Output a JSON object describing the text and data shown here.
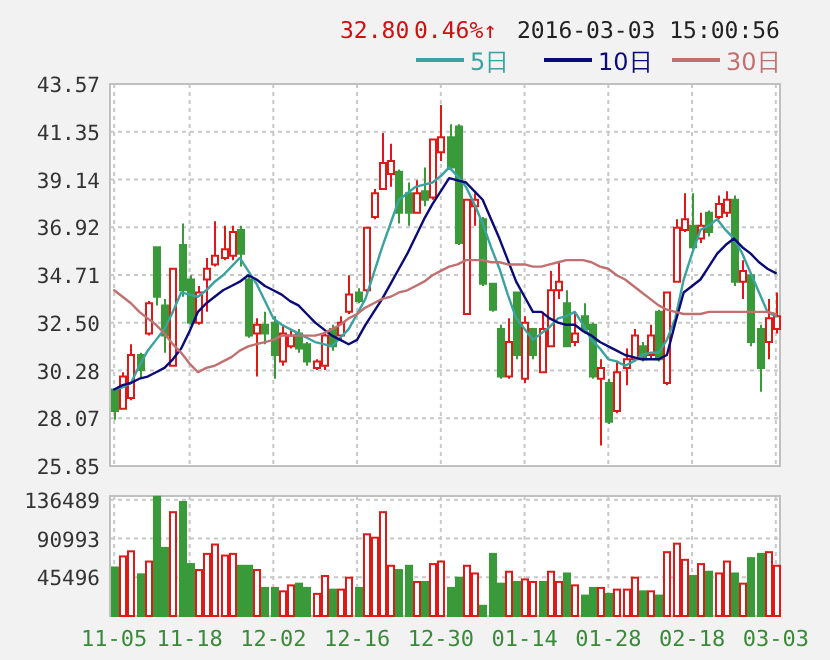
{
  "chart_data": [
    {
      "type": "candlestick",
      "categories": [
        null,
        null,
        null,
        null,
        null,
        null,
        null,
        null,
        null,
        null,
        null,
        null,
        null,
        null,
        null,
        null,
        null,
        null,
        null,
        null,
        null,
        null,
        null,
        null,
        null,
        null,
        null,
        null,
        null,
        null,
        null,
        null,
        null,
        null,
        null,
        null,
        null,
        null,
        null,
        null,
        null,
        null,
        null,
        null,
        null,
        null,
        null,
        null,
        null,
        null,
        null,
        null,
        null,
        null,
        null,
        null,
        null,
        null,
        null,
        null,
        null,
        null,
        null,
        null,
        null,
        null,
        null,
        null,
        null,
        null,
        null,
        null,
        null,
        null,
        null,
        null,
        null,
        null,
        null,
        null
      ],
      "ohlc": [
        [
          29.4,
          29.4,
          28.0,
          28.4
        ],
        [
          28.5,
          30.2,
          28.5,
          30.0
        ],
        [
          29.0,
          31.5,
          28.9,
          31.0
        ],
        [
          31.0,
          31.1,
          29.9,
          30.3
        ],
        [
          32.0,
          33.5,
          31.9,
          33.4
        ],
        [
          36.0,
          36.0,
          33.3,
          33.7
        ],
        [
          33.3,
          33.6,
          31.1,
          31.9
        ],
        [
          30.5,
          35.0,
          30.5,
          35.0
        ],
        [
          36.1,
          37.1,
          33.7,
          34.0
        ],
        [
          34.5,
          34.7,
          32.4,
          32.5
        ],
        [
          32.5,
          34.2,
          32.4,
          33.9
        ],
        [
          34.5,
          35.5,
          33.0,
          35.0
        ],
        [
          35.2,
          37.2,
          35.1,
          35.6
        ],
        [
          35.5,
          37.0,
          35.4,
          35.9
        ],
        [
          35.6,
          37.0,
          35.4,
          36.7
        ],
        [
          36.8,
          37.0,
          35.1,
          35.7
        ],
        [
          34.5,
          34.7,
          31.8,
          31.9
        ],
        [
          32.0,
          32.7,
          30.0,
          32.4
        ],
        [
          32.4,
          33.0,
          31.5,
          32.0
        ],
        [
          32.5,
          32.8,
          29.9,
          31.0
        ],
        [
          30.7,
          32.4,
          30.5,
          32.0
        ],
        [
          31.4,
          32.2,
          31.3,
          31.9
        ],
        [
          32.0,
          32.2,
          31.1,
          31.3
        ],
        [
          31.5,
          31.6,
          30.5,
          30.7
        ],
        [
          30.4,
          30.8,
          30.3,
          30.7
        ],
        [
          30.5,
          32.0,
          30.3,
          31.9
        ],
        [
          32.2,
          32.4,
          31.2,
          31.4
        ],
        [
          31.9,
          32.8,
          31.7,
          32.5
        ],
        [
          33.0,
          34.7,
          32.9,
          33.8
        ],
        [
          33.9,
          34.1,
          33.4,
          33.5
        ],
        [
          34.0,
          36.9,
          33.9,
          36.9
        ],
        [
          37.4,
          38.7,
          37.3,
          38.5
        ],
        [
          38.7,
          41.3,
          38.7,
          39.9
        ],
        [
          39.4,
          40.8,
          38.8,
          40.0
        ],
        [
          39.5,
          39.6,
          37.1,
          37.6
        ],
        [
          38.5,
          39.0,
          37.0,
          37.6
        ],
        [
          37.6,
          39.1,
          37.6,
          38.5
        ],
        [
          38.6,
          39.7,
          37.9,
          38.2
        ],
        [
          38.3,
          41.0,
          38.2,
          41.0
        ],
        [
          40.4,
          42.6,
          40.0,
          41.1
        ],
        [
          41.1,
          41.7,
          39.6,
          39.7
        ],
        [
          41.6,
          41.7,
          36.1,
          36.2
        ],
        [
          32.9,
          38.2,
          32.9,
          38.2
        ],
        [
          37.9,
          38.5,
          37.0,
          38.2
        ],
        [
          37.3,
          37.4,
          34.2,
          34.3
        ],
        [
          34.3,
          34.3,
          33.0,
          33.1
        ],
        [
          32.2,
          32.4,
          29.9,
          30.0
        ],
        [
          30.0,
          32.7,
          29.9,
          31.6
        ],
        [
          33.9,
          33.9,
          30.8,
          31.0
        ],
        [
          29.9,
          32.8,
          29.7,
          32.5
        ],
        [
          32.2,
          32.2,
          30.8,
          31.0
        ],
        [
          30.2,
          33.0,
          30.2,
          32.2
        ],
        [
          31.4,
          34.9,
          31.4,
          34.0
        ],
        [
          34.0,
          35.3,
          33.6,
          34.4
        ],
        [
          33.4,
          34.0,
          31.4,
          31.4
        ],
        [
          31.6,
          33.0,
          31.4,
          32.0
        ],
        [
          32.8,
          33.4,
          32.0,
          32.2
        ],
        [
          32.4,
          32.5,
          29.9,
          30.0
        ],
        [
          29.9,
          30.8,
          26.8,
          30.4
        ],
        [
          29.7,
          29.9,
          27.8,
          27.9
        ],
        [
          28.4,
          30.7,
          28.3,
          30.2
        ],
        [
          30.4,
          31.3,
          29.6,
          30.8
        ],
        [
          30.8,
          32.2,
          30.7,
          31.9
        ],
        [
          31.4,
          31.6,
          30.7,
          30.8
        ],
        [
          31.0,
          32.4,
          30.8,
          31.9
        ],
        [
          33.0,
          33.1,
          30.7,
          30.8
        ],
        [
          29.7,
          33.9,
          29.6,
          33.9
        ],
        [
          34.4,
          37.3,
          34.4,
          36.9
        ],
        [
          36.8,
          38.5,
          36.7,
          37.3
        ],
        [
          37.0,
          38.5,
          35.9,
          36.0
        ],
        [
          36.4,
          37.6,
          36.2,
          37.0
        ],
        [
          37.6,
          37.7,
          36.5,
          36.7
        ],
        [
          37.4,
          38.4,
          37.3,
          38.0
        ],
        [
          37.6,
          38.6,
          37.4,
          38.2
        ],
        [
          38.2,
          38.4,
          34.2,
          34.4
        ],
        [
          34.4,
          35.4,
          33.6,
          34.9
        ],
        [
          34.7,
          34.8,
          31.4,
          31.6
        ],
        [
          32.2,
          32.4,
          29.3,
          30.4
        ],
        [
          31.6,
          33.6,
          30.8,
          32.7
        ],
        [
          32.2,
          33.9,
          32.0,
          32.8
        ]
      ],
      "colors": [
        "#3a9a3a",
        "#e01818",
        "#e01818",
        "#3a9a3a",
        "#e01818",
        "#3a9a3a",
        "#3a9a3a",
        "#e01818",
        "#3a9a3a",
        "#3a9a3a",
        "#e01818",
        "#e01818",
        "#e01818",
        "#e01818",
        "#e01818",
        "#3a9a3a",
        "#3a9a3a",
        "#e01818",
        "#3a9a3a",
        "#3a9a3a",
        "#e01818",
        "#e01818",
        "#3a9a3a",
        "#3a9a3a",
        "#e01818",
        "#e01818",
        "#3a9a3a",
        "#e01818",
        "#e01818",
        "#3a9a3a",
        "#e01818",
        "#e01818",
        "#e01818",
        "#e01818",
        "#3a9a3a",
        "#3a9a3a",
        "#e01818",
        "#3a9a3a",
        "#e01818",
        "#e01818",
        "#3a9a3a",
        "#3a9a3a",
        "#e01818",
        "#e01818",
        "#3a9a3a",
        "#3a9a3a",
        "#3a9a3a",
        "#e01818",
        "#3a9a3a",
        "#e01818",
        "#3a9a3a",
        "#e01818",
        "#e01818",
        "#e01818",
        "#3a9a3a",
        "#e01818",
        "#3a9a3a",
        "#3a9a3a",
        "#e01818",
        "#3a9a3a",
        "#e01818",
        "#e01818",
        "#e01818",
        "#3a9a3a",
        "#e01818",
        "#3a9a3a",
        "#e01818",
        "#e01818",
        "#e01818",
        "#3a9a3a",
        "#e01818",
        "#3a9a3a",
        "#e01818",
        "#e01818",
        "#3a9a3a",
        "#e01818",
        "#3a9a3a",
        "#3a9a3a",
        "#e01818",
        "#e01818"
      ],
      "series": [
        {
          "name": "5日",
          "color": "#3aa3a0",
          "type": "line",
          "values": [
            29.4,
            29.5,
            29.7,
            30.5,
            31.2,
            31.7,
            32.2,
            33.0,
            33.9,
            33.8,
            33.7,
            34.0,
            34.4,
            34.7,
            35.1,
            35.5,
            34.9,
            34.3,
            33.5,
            32.7,
            32.4,
            32.2,
            32.0,
            31.8,
            31.6,
            31.5,
            31.4,
            31.8,
            32.2,
            32.9,
            33.6,
            34.8,
            36.0,
            37.1,
            38.2,
            38.5,
            38.8,
            38.9,
            39.0,
            39.3,
            39.7,
            39.3,
            38.8,
            38.0,
            37.1,
            36.0,
            35.0,
            33.8,
            32.7,
            32.2,
            31.7,
            32.0,
            32.3,
            32.7,
            32.8,
            33.0,
            32.4,
            31.7,
            31.3,
            30.8,
            30.7,
            30.5,
            30.7,
            31.0,
            31.1,
            31.1,
            31.7,
            32.7,
            34.5,
            35.7,
            36.8,
            37.0,
            37.3,
            36.8,
            36.4,
            35.7,
            34.8,
            33.9,
            33.0,
            32.8
          ]
        },
        {
          "name": "10日",
          "color": "#0a0a78",
          "type": "line",
          "values": [
            29.4,
            29.6,
            29.7,
            29.9,
            30.0,
            30.2,
            30.4,
            30.8,
            31.3,
            32.1,
            33.0,
            33.4,
            33.7,
            34.0,
            34.2,
            34.4,
            34.7,
            34.5,
            34.2,
            34.0,
            33.8,
            33.5,
            33.3,
            32.9,
            32.5,
            32.2,
            31.9,
            31.7,
            31.5,
            31.7,
            32.4,
            33.0,
            33.6,
            34.3,
            35.0,
            35.7,
            36.5,
            37.3,
            38.0,
            38.6,
            39.2,
            39.1,
            39.0,
            38.6,
            38.2,
            37.3,
            36.4,
            35.4,
            34.4,
            33.7,
            33.0,
            33.0,
            32.7,
            32.5,
            32.4,
            32.4,
            32.1,
            31.9,
            31.6,
            31.4,
            31.2,
            31.0,
            30.9,
            30.8,
            30.8,
            30.8,
            31.0,
            32.5,
            33.9,
            34.2,
            34.5,
            35.1,
            35.7,
            36.1,
            36.4,
            36.0,
            35.7,
            35.3,
            35.0,
            34.8
          ]
        },
        {
          "name": "30日",
          "color": "#c07070",
          "type": "line",
          "values": [
            34.0,
            33.7,
            33.4,
            33.0,
            32.7,
            32.4,
            32.0,
            31.5,
            31.1,
            30.6,
            30.2,
            30.4,
            30.5,
            30.7,
            30.9,
            31.2,
            31.4,
            31.5,
            31.6,
            31.7,
            31.9,
            31.9,
            31.9,
            31.9,
            31.9,
            32.0,
            32.2,
            32.4,
            32.7,
            32.9,
            33.2,
            33.4,
            33.6,
            33.7,
            33.9,
            34.0,
            34.2,
            34.4,
            34.7,
            34.9,
            35.1,
            35.2,
            35.4,
            35.4,
            35.4,
            35.3,
            35.3,
            35.2,
            35.2,
            35.2,
            35.1,
            35.1,
            35.2,
            35.3,
            35.4,
            35.4,
            35.4,
            35.3,
            35.1,
            35.0,
            34.7,
            34.5,
            34.2,
            33.9,
            33.6,
            33.3,
            33.1,
            33.0,
            32.9,
            32.9,
            32.9,
            33.0,
            33.0,
            33.0,
            33.0,
            33.0,
            33.0,
            33.0,
            33.0,
            32.9
          ]
        }
      ],
      "ylim": [
        25.85,
        43.57
      ],
      "yticks": [
        25.85,
        28.07,
        30.28,
        {
          "value": 32.5,
          "label": "32.50"
        },
        34.71,
        36.92,
        39.14,
        41.35,
        43.57
      ],
      "tick_labels": "y",
      "grid": true,
      "legend": "top right",
      "annotations": [
        "32.80",
        "0.46%↑",
        "2016-03-03 15:00:56"
      ]
    },
    {
      "type": "bar",
      "categories": [
        "11-05",
        null,
        null,
        null,
        null,
        null,
        null,
        null,
        null,
        "11-18",
        null,
        null,
        null,
        null,
        null,
        null,
        null,
        null,
        null,
        "12-02",
        null,
        null,
        null,
        null,
        null,
        null,
        null,
        null,
        null,
        "12-16",
        null,
        null,
        null,
        null,
        null,
        null,
        null,
        null,
        null,
        "12-30",
        null,
        null,
        null,
        null,
        null,
        null,
        null,
        null,
        null,
        "01-14",
        null,
        null,
        null,
        null,
        null,
        null,
        null,
        null,
        null,
        "01-28",
        null,
        null,
        null,
        null,
        null,
        null,
        null,
        null,
        null,
        "02-18",
        null,
        null,
        null,
        null,
        null,
        null,
        null,
        null,
        null,
        "03-03"
      ],
      "values": [
        57000,
        70000,
        76000,
        49000,
        64000,
        140000,
        80000,
        122000,
        134000,
        61000,
        54000,
        73000,
        84000,
        71000,
        73000,
        59000,
        59000,
        54000,
        33000,
        33000,
        29000,
        36000,
        38000,
        33000,
        26000,
        47000,
        31000,
        31000,
        45000,
        33000,
        96000,
        92000,
        122000,
        59000,
        54000,
        59000,
        40000,
        40000,
        61000,
        64000,
        33000,
        45000,
        59000,
        50000,
        12000,
        73000,
        38000,
        52000,
        40000,
        43000,
        40000,
        40000,
        52000,
        40000,
        50000,
        36000,
        24000,
        33000,
        33000,
        26000,
        31000,
        31000,
        45000,
        29000,
        29000,
        24000,
        75000,
        85000,
        66000,
        47000,
        61000,
        52000,
        50000,
        64000,
        50000,
        38000,
        68000,
        73000,
        75000,
        59000
      ],
      "colors": [
        "#3a9a3a",
        "#e01818",
        "#e01818",
        "#3a9a3a",
        "#e01818",
        "#3a9a3a",
        "#3a9a3a",
        "#e01818",
        "#3a9a3a",
        "#3a9a3a",
        "#e01818",
        "#e01818",
        "#e01818",
        "#e01818",
        "#e01818",
        "#3a9a3a",
        "#3a9a3a",
        "#e01818",
        "#3a9a3a",
        "#3a9a3a",
        "#e01818",
        "#e01818",
        "#3a9a3a",
        "#3a9a3a",
        "#e01818",
        "#e01818",
        "#3a9a3a",
        "#e01818",
        "#e01818",
        "#3a9a3a",
        "#e01818",
        "#e01818",
        "#e01818",
        "#e01818",
        "#3a9a3a",
        "#3a9a3a",
        "#e01818",
        "#3a9a3a",
        "#e01818",
        "#e01818",
        "#3a9a3a",
        "#3a9a3a",
        "#e01818",
        "#e01818",
        "#3a9a3a",
        "#3a9a3a",
        "#3a9a3a",
        "#e01818",
        "#3a9a3a",
        "#e01818",
        "#e01818",
        "#3a9a3a",
        "#e01818",
        "#e01818",
        "#3a9a3a",
        "#e01818",
        "#3a9a3a",
        "#3a9a3a",
        "#e01818",
        "#3a9a3a",
        "#e01818",
        "#e01818",
        "#e01818",
        "#3a9a3a",
        "#e01818",
        "#3a9a3a",
        "#e01818",
        "#e01818",
        "#e01818",
        "#3a9a3a",
        "#e01818",
        "#3a9a3a",
        "#e01818",
        "#e01818",
        "#3a9a3a",
        "#e01818",
        "#3a9a3a",
        "#3a9a3a",
        "#e01818",
        "#e01818"
      ],
      "ylim": [
        0,
        141000
      ],
      "yticks": [
        45496,
        90993,
        136489
      ],
      "grid": true
    }
  ]
}
